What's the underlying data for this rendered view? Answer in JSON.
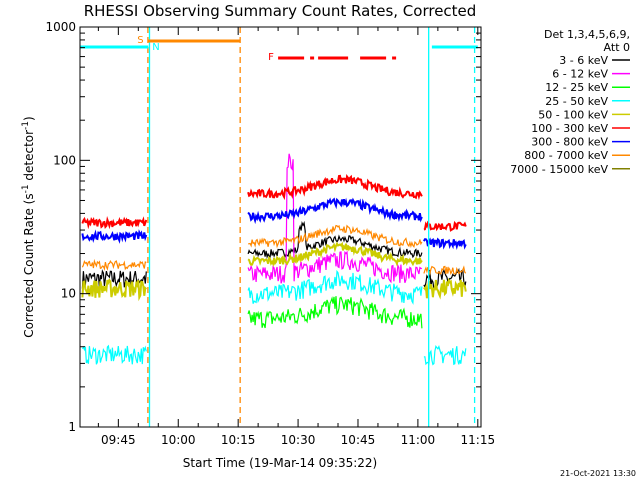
{
  "chart_data": {
    "type": "line",
    "title": "RHESSI Observing Summary Count Rates, Corrected",
    "xlabel": "Start Time (19-Mar-14 09:35:22)",
    "ylabel_main": "Corrected Count Rate (s",
    "ylabel_sup1": "-1",
    "ylabel_mid": " detector",
    "ylabel_sup2": "-1",
    "ylabel_end": ")",
    "y_scale": "log",
    "ylim": [
      1,
      1000
    ],
    "xlim_minutes": [
      35.4,
      135.8
    ],
    "x_ticks": [
      {
        "label": "09:45",
        "minute": 45
      },
      {
        "label": "10:00",
        "minute": 60
      },
      {
        "label": "10:15",
        "minute": 75
      },
      {
        "label": "10:30",
        "minute": 90
      },
      {
        "label": "10:45",
        "minute": 105
      },
      {
        "label": "11:00",
        "minute": 120
      },
      {
        "label": "11:15",
        "minute": 135
      }
    ],
    "y_ticks": [
      {
        "label": "1",
        "value": 1
      },
      {
        "label": "10",
        "value": 10
      },
      {
        "label": "100",
        "value": 100
      },
      {
        "label": "1000",
        "value": 1000
      }
    ],
    "legend": {
      "header_line1": "Det 1,3,4,5,6,9,",
      "header_line2": "Att 0",
      "placement": "right"
    },
    "series": [
      {
        "name": "3 - 6 keV",
        "color": "#000000",
        "before": 13,
        "during": 20,
        "after": 13
      },
      {
        "name": "6 - 12 keV",
        "color": "#ff00ff",
        "before": 0,
        "during": 14,
        "after": 0
      },
      {
        "name": "12 - 25 keV",
        "color": "#00ff00",
        "before": 0,
        "during": 6.5,
        "after": 0
      },
      {
        "name": "25 - 50 keV",
        "color": "#00ffff",
        "before": 3.5,
        "during": 10,
        "after": 3.5
      },
      {
        "name": "50 - 100 keV",
        "color": "#cccc00",
        "before": 11,
        "during": 17.5,
        "after": 11
      },
      {
        "name": "100 - 300 keV",
        "color": "#ff0000",
        "before": 34,
        "during": 56,
        "after": 32
      },
      {
        "name": "300 - 800 keV",
        "color": "#0000ff",
        "before": 27,
        "during": 38,
        "after": 24
      },
      {
        "name": "800 - 7000 keV",
        "color": "#ff8800",
        "before": 16.5,
        "during": 24,
        "after": 15
      },
      {
        "name": "7000 - 15000 keV",
        "color": "#808000",
        "before": 0,
        "during": 0,
        "after": 0
      }
    ],
    "segments": {
      "before_minutes": [
        36,
        52
      ],
      "during_minutes": [
        77.5,
        121
      ],
      "after_minutes": [
        121.5,
        132
      ]
    },
    "flags": [
      {
        "label": "S",
        "color": "#ff8800",
        "row": "top",
        "start_minute": 52.5,
        "end_minute": 75.5
      },
      {
        "label": "N",
        "color": "#00ffff",
        "row": "top",
        "start_minute": 35.5,
        "end_minute": 52.5
      },
      {
        "label": "N",
        "color": "#00ffff",
        "row": "top",
        "start_minute": 123.5,
        "end_minute": 135
      },
      {
        "label": "F",
        "color": "#ff0000",
        "row": "lower",
        "start_minute": 85,
        "end_minute": 115
      }
    ],
    "vertical_lines": [
      {
        "minute": 52.4,
        "color": "#ff8800",
        "style": "dashed"
      },
      {
        "minute": 52.8,
        "color": "#00ffff",
        "style": "solid"
      },
      {
        "minute": 75.5,
        "color": "#ff8800",
        "style": "dashed"
      },
      {
        "minute": 122.7,
        "color": "#00ffff",
        "style": "solid"
      },
      {
        "minute": 134.2,
        "color": "#00ffff",
        "style": "dashed"
      }
    ],
    "timestamp": "21-Oct-2021 13:30"
  }
}
